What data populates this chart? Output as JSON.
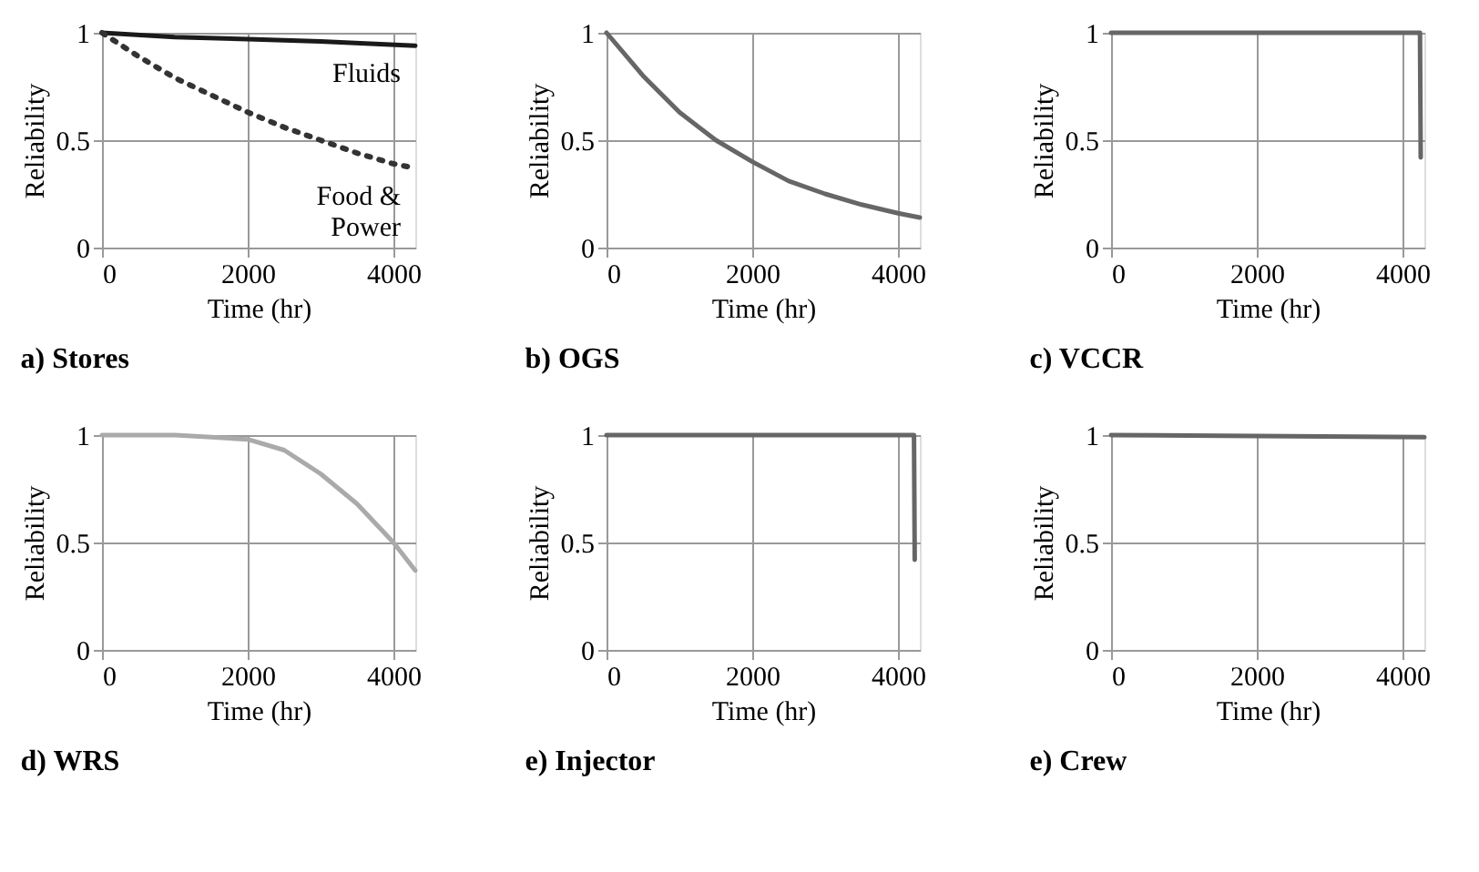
{
  "chart_data": [
    {
      "type": "line",
      "title": "a) Stores",
      "xlabel": "Time (hr)",
      "ylabel": "Reliability",
      "xlim": [
        0,
        4300
      ],
      "ylim": [
        0,
        1
      ],
      "xticks": [
        0,
        2000,
        4000
      ],
      "yticks": [
        0,
        0.5,
        1
      ],
      "grid": true,
      "legend": false,
      "series": [
        {
          "name": "Fluids",
          "color": "#1a1a1a",
          "line_style": "solid",
          "x": [
            0,
            1000,
            2000,
            3000,
            4300
          ],
          "values": [
            1,
            0.98,
            0.97,
            0.96,
            0.94
          ]
        },
        {
          "name": "Food & Power",
          "color": "#333333",
          "line_style": "dotted",
          "x": [
            0,
            500,
            1000,
            1500,
            2000,
            2500,
            3000,
            3500,
            4000,
            4300
          ],
          "values": [
            1,
            0.89,
            0.79,
            0.71,
            0.63,
            0.56,
            0.5,
            0.44,
            0.39,
            0.37
          ]
        }
      ]
    },
    {
      "type": "line",
      "title": "b) OGS",
      "xlabel": "Time (hr)",
      "ylabel": "Reliability",
      "xlim": [
        0,
        4300
      ],
      "ylim": [
        0,
        1
      ],
      "xticks": [
        0,
        2000,
        4000
      ],
      "yticks": [
        0,
        0.5,
        1
      ],
      "grid": true,
      "legend": false,
      "series": [
        {
          "color": "#666666",
          "line_style": "solid",
          "x": [
            0,
            500,
            1000,
            1500,
            2000,
            2500,
            3000,
            3500,
            4000,
            4300
          ],
          "values": [
            1,
            0.8,
            0.63,
            0.5,
            0.4,
            0.31,
            0.25,
            0.2,
            0.16,
            0.14
          ]
        }
      ]
    },
    {
      "type": "line",
      "title": "c) VCCR",
      "xlabel": "Time (hr)",
      "ylabel": "Reliability",
      "xlim": [
        0,
        4300
      ],
      "ylim": [
        0,
        1
      ],
      "xticks": [
        0,
        2000,
        4000
      ],
      "yticks": [
        0,
        0.5,
        1
      ],
      "grid": true,
      "legend": false,
      "series": [
        {
          "color": "#666666",
          "line_style": "solid",
          "x": [
            0,
            4240,
            4250
          ],
          "values": [
            1,
            1,
            0.42
          ]
        }
      ]
    },
    {
      "type": "line",
      "title": "d) WRS",
      "xlabel": "Time (hr)",
      "ylabel": "Reliability",
      "xlim": [
        0,
        4300
      ],
      "ylim": [
        0,
        1
      ],
      "xticks": [
        0,
        2000,
        4000
      ],
      "yticks": [
        0,
        0.5,
        1
      ],
      "grid": true,
      "legend": false,
      "series": [
        {
          "color": "#aaaaaa",
          "line_style": "solid",
          "x": [
            0,
            1000,
            1500,
            2000,
            2500,
            3000,
            3500,
            4000,
            4300
          ],
          "values": [
            1,
            1,
            0.99,
            0.98,
            0.93,
            0.82,
            0.68,
            0.5,
            0.37
          ]
        }
      ]
    },
    {
      "type": "line",
      "title": "e) Injector",
      "xlabel": "Time (hr)",
      "ylabel": "Reliability",
      "xlim": [
        0,
        4300
      ],
      "ylim": [
        0,
        1
      ],
      "xticks": [
        0,
        2000,
        4000
      ],
      "yticks": [
        0,
        0.5,
        1
      ],
      "grid": true,
      "legend": false,
      "series": [
        {
          "color": "#666666",
          "line_style": "solid",
          "x": [
            0,
            4220,
            4230
          ],
          "values": [
            1,
            1,
            0.42
          ]
        }
      ]
    },
    {
      "type": "line",
      "title": "e) Crew",
      "xlabel": "Time (hr)",
      "ylabel": "Reliability",
      "xlim": [
        0,
        4300
      ],
      "ylim": [
        0,
        1
      ],
      "xticks": [
        0,
        2000,
        4000
      ],
      "yticks": [
        0,
        0.5,
        1
      ],
      "grid": true,
      "legend": false,
      "series": [
        {
          "color": "#666666",
          "line_style": "solid",
          "x": [
            0,
            4300
          ],
          "values": [
            1,
            0.99
          ]
        }
      ]
    }
  ]
}
